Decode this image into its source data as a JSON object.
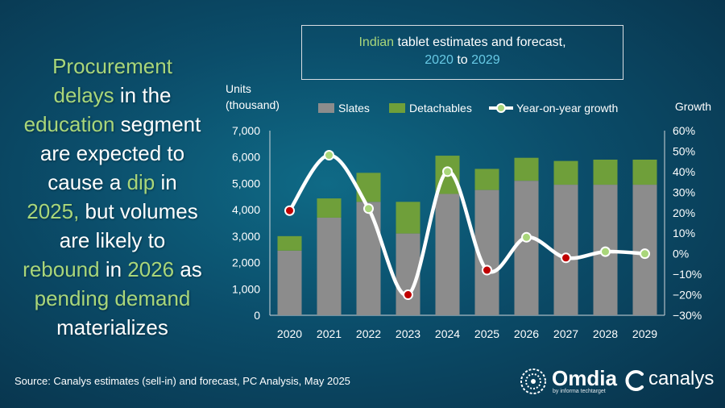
{
  "headline": {
    "t1": "Procurement",
    "t2": "delays",
    "t3": " in the",
    "t4": "education",
    "t5": " segment",
    "t6": "are expected to",
    "t7": "cause a ",
    "t8": "dip",
    "t9": " in",
    "t10": "2025,",
    "t11": " but volumes",
    "t12": "are likely to",
    "t13": "rebound",
    "t14": " in ",
    "t15": "2026",
    "t16": " as",
    "t17": "pending demand",
    "t18": "materializes"
  },
  "title": {
    "p1": "Indian",
    "p2": " tablet estimates and forecast,",
    "p3": "2020",
    "p4": " to ",
    "p5": "2029"
  },
  "source": "Source: Canalys estimates (sell-in) and forecast, PC Analysis, May 2025",
  "logos": {
    "omdia": "Omdia",
    "omdia_sub": "by informa techtarget",
    "canalys": "canalys"
  },
  "colors": {
    "slates": "#8c8c8c",
    "detachables": "#6f9f3a",
    "growth_line": "#ffffff",
    "marker_negative": "#c00000",
    "marker_positive": "#a9d67a",
    "highlight_text": "#a9d67a",
    "title_blue": "#67c9e5"
  },
  "chart_data": {
    "type": "bar",
    "stacked": true,
    "categories": [
      "2020",
      "2021",
      "2022",
      "2023",
      "2024",
      "2025",
      "2026",
      "2027",
      "2028",
      "2029"
    ],
    "series": [
      {
        "name": "Slates",
        "values": [
          2450,
          3700,
          4300,
          3100,
          4600,
          4750,
          5100,
          4950,
          4950,
          4950
        ]
      },
      {
        "name": "Detachables",
        "values": [
          550,
          730,
          1100,
          1200,
          1450,
          800,
          870,
          900,
          950,
          950
        ]
      }
    ],
    "line_series": {
      "name": "Year-on-year growth",
      "axis": "secondary",
      "values": [
        21,
        48,
        22,
        -20,
        40,
        -8,
        8,
        -2,
        1,
        0
      ]
    },
    "ylabel": "Units\n(thousand)",
    "ylabel_lines": [
      "Units",
      "(thousand)"
    ],
    "y2label": "Growth",
    "ylim": [
      0,
      7000
    ],
    "y_ticks": [
      "0",
      "1,000",
      "2,000",
      "3,000",
      "4,000",
      "5,000",
      "6,000",
      "7,000"
    ],
    "y2lim": [
      -30,
      60
    ],
    "y2_ticks": [
      "−30%",
      "−20%",
      "−10%",
      "0%",
      "10%",
      "20%",
      "30%",
      "40%",
      "50%",
      "60%"
    ],
    "legend": [
      "Slates",
      "Detachables",
      "Year-on-year growth"
    ],
    "legend_position": "top",
    "grid": false
  }
}
